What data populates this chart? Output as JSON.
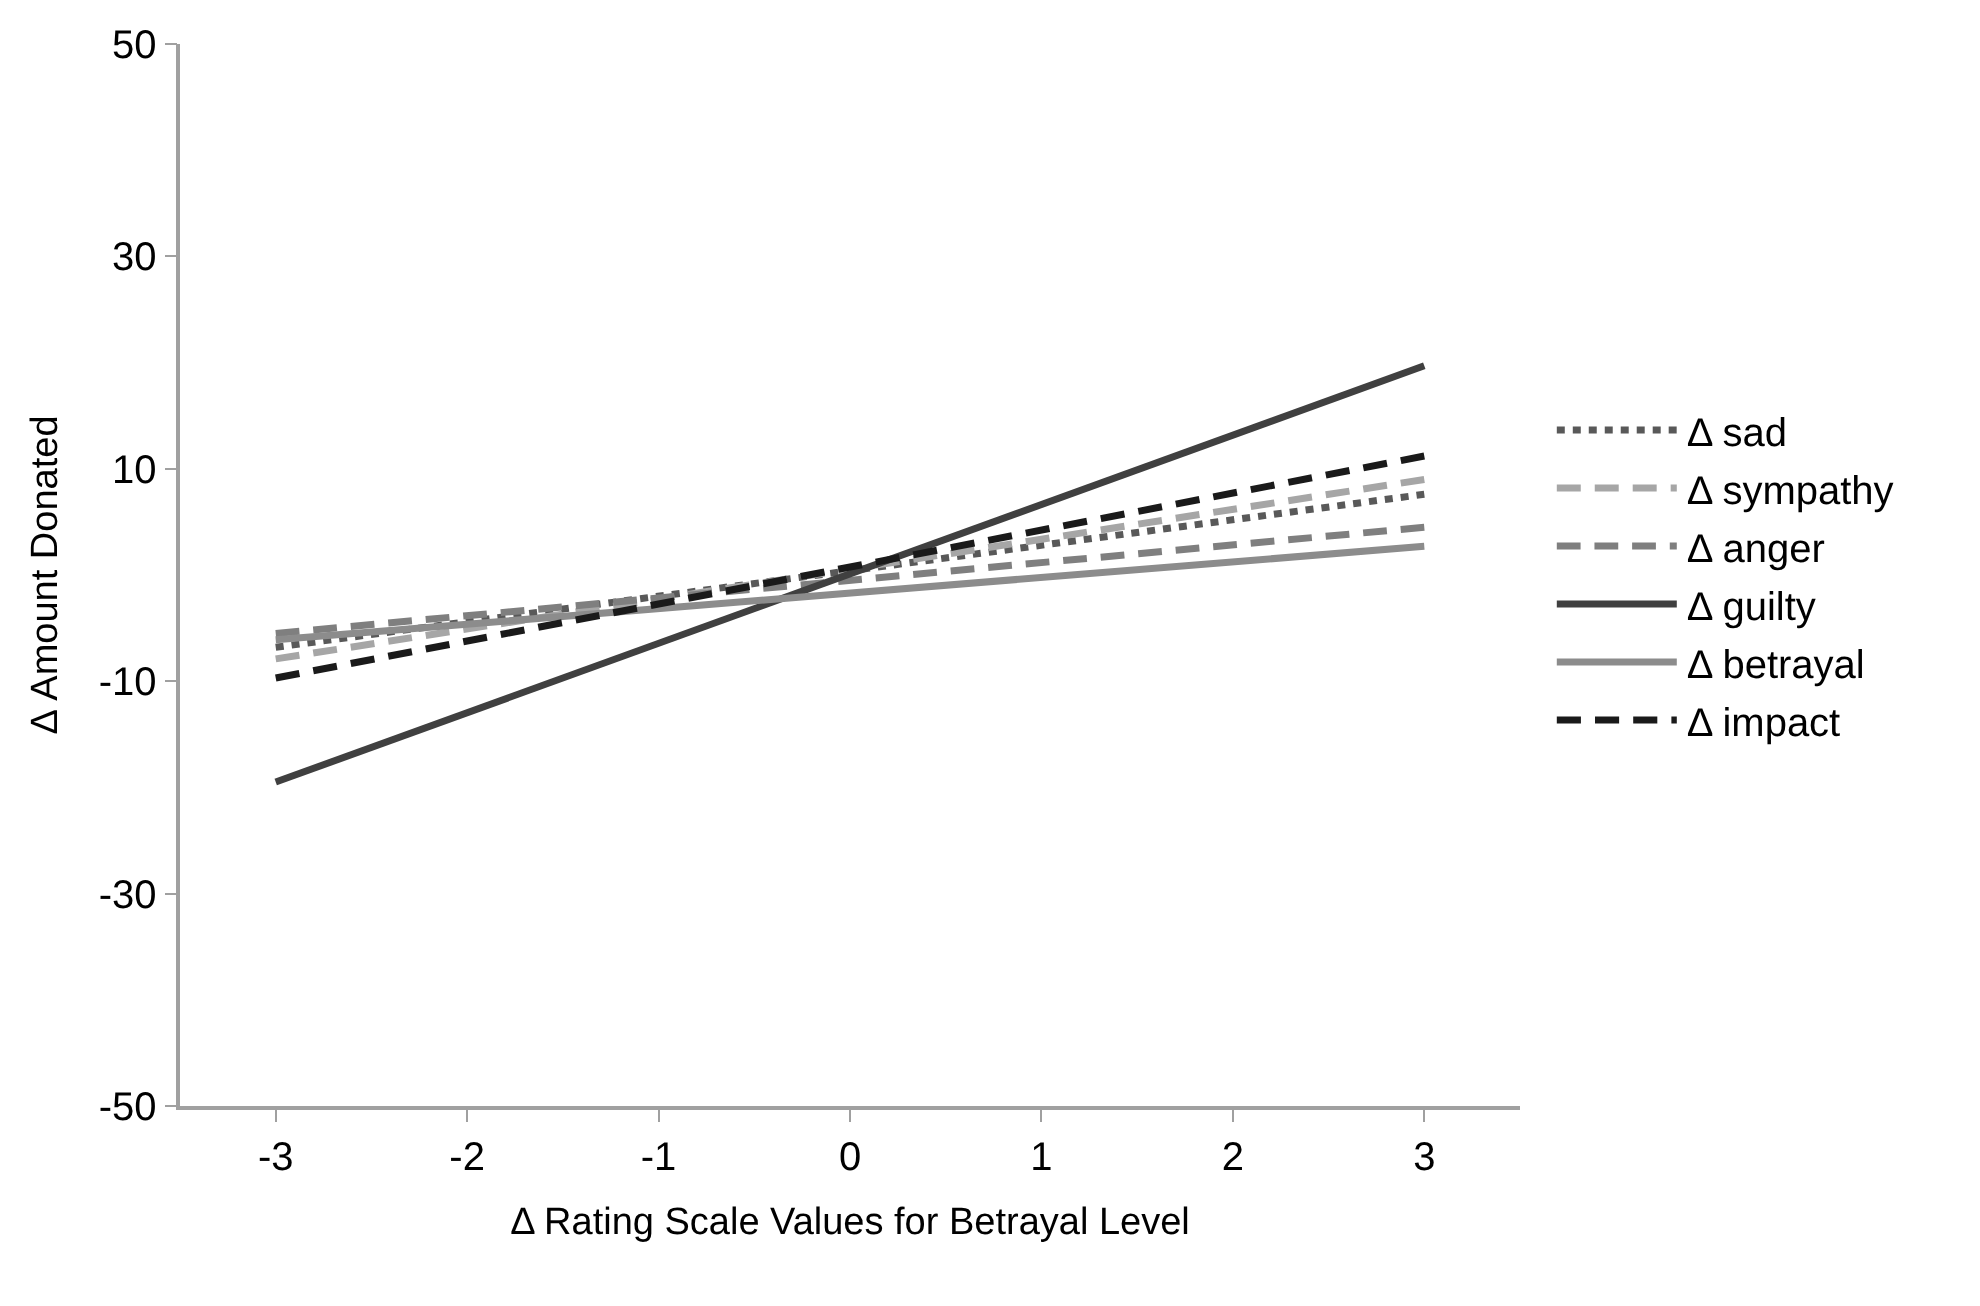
{
  "chart_data": {
    "type": "line",
    "xlabel": "Δ Rating Scale Values for Betrayal Level",
    "ylabel": "Δ Amount Donated",
    "x": [
      -3,
      3
    ],
    "xlim": [
      -3.5,
      3.5
    ],
    "xticks": [
      -3,
      -2,
      -1,
      0,
      1,
      2,
      3
    ],
    "ylim": [
      -50,
      50
    ],
    "yticks": [
      -50,
      -30,
      -10,
      10,
      30,
      50
    ],
    "legend": "right",
    "marker": "none",
    "series": [
      {
        "name": "Δ sad",
        "color": "#595959",
        "line_style": "dotted",
        "values": [
          -6.8,
          7.6
        ]
      },
      {
        "name": "Δ sympathy",
        "color": "#a6a6a6",
        "line_style": "dashed",
        "values": [
          -7.9,
          9.0
        ]
      },
      {
        "name": "Δ anger",
        "color": "#7f7f7f",
        "line_style": "dashed",
        "values": [
          -5.5,
          4.5
        ]
      },
      {
        "name": "Δ guilty",
        "color": "#404040",
        "line_style": "solid",
        "values": [
          -19.5,
          19.7
        ]
      },
      {
        "name": "Δ betrayal",
        "color": "#8c8c8c",
        "line_style": "solid",
        "values": [
          -6.1,
          2.7
        ]
      },
      {
        "name": "Δ impact",
        "color": "#1a1a1a",
        "line_style": "dashed",
        "values": [
          -9.7,
          11.2
        ]
      }
    ]
  }
}
